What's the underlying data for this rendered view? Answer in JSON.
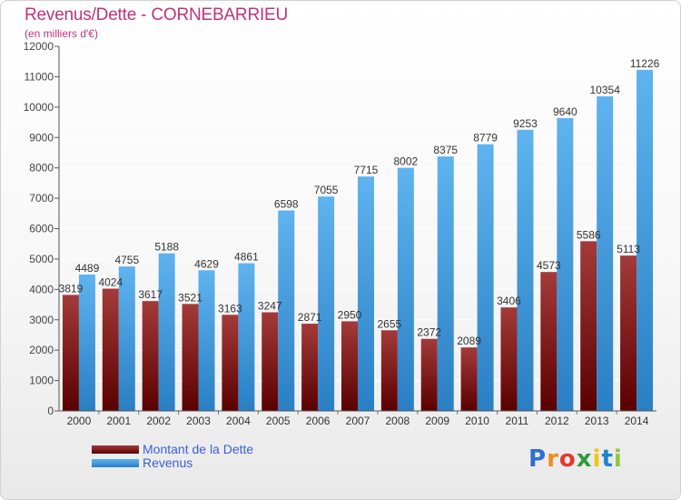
{
  "title": "Revenus/Dette - CORNEBARRIEU",
  "subtitle": "(en milliers d'€)",
  "legend": [
    {
      "label": "Montant de la Dette",
      "color": "#7a1010"
    },
    {
      "label": "Revenus",
      "color": "#3f9be0"
    }
  ],
  "logo": {
    "letters": [
      "P",
      "r",
      "o",
      "x",
      "i",
      "t",
      "i"
    ],
    "colors": [
      "#2f6fd1",
      "#f08c1a",
      "#e23b2d",
      "#2f9b3a",
      "#f3c318",
      "#1f84c9",
      "#8fc63f"
    ]
  },
  "chart_data": {
    "type": "bar",
    "title": "Revenus/Dette - CORNEBARRIEU",
    "subtitle": "(en milliers d'€)",
    "categories": [
      "2000",
      "2001",
      "2002",
      "2003",
      "2004",
      "2005",
      "2006",
      "2007",
      "2008",
      "2009",
      "2010",
      "2011",
      "2012",
      "2013",
      "2014"
    ],
    "series": [
      {
        "name": "Montant de la Dette",
        "color": "#7a1010",
        "values": [
          3819,
          4024,
          3617,
          3521,
          3163,
          3247,
          2871,
          2950,
          2655,
          2372,
          2089,
          3406,
          4573,
          5586,
          5113
        ],
        "labels": [
          "3819",
          "4024",
          "3617",
          "3521",
          "3163",
          "3247",
          "2871",
          "2950",
          "2655",
          "2372",
          "2089",
          "3406",
          "4573",
          "5586",
          "5113"
        ]
      },
      {
        "name": "Revenus",
        "color": "#3f9be0",
        "values": [
          4489,
          4755,
          5188,
          4629,
          4861,
          6598,
          7055,
          7715,
          8002,
          8375,
          8779,
          9253,
          9640,
          10354,
          11226
        ],
        "labels": [
          "4489",
          "4755",
          "5188",
          "4629",
          "4861",
          "6598",
          "7055",
          "7715",
          "8002",
          "8375",
          "8779",
          "9253",
          "9640",
          "10354",
          "11226"
        ]
      }
    ],
    "ylim": [
      0,
      12000
    ],
    "yticks": [
      0,
      1000,
      2000,
      3000,
      4000,
      5000,
      6000,
      7000,
      8000,
      9000,
      10000,
      11000,
      12000
    ],
    "grid": true,
    "legend_position": "bottom-left"
  }
}
